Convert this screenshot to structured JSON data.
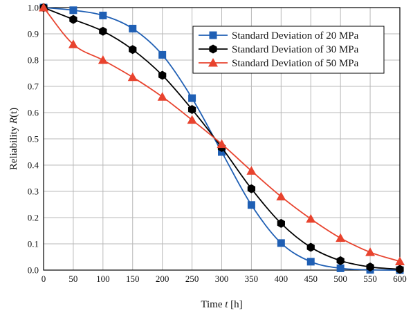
{
  "chart_data": {
    "type": "line",
    "title": "",
    "xlabel": "Time t [h]",
    "ylabel": "Reliability R(t)",
    "xlabel_parts": {
      "prefix": "Time ",
      "var": "t",
      "suffix": " [h]"
    },
    "ylabel_parts": {
      "prefix": "Reliability ",
      "var": "R",
      "suffix": "(t)"
    },
    "xlim": [
      0,
      600
    ],
    "ylim": [
      0,
      1.0
    ],
    "xticks": [
      0,
      50,
      100,
      150,
      200,
      250,
      300,
      350,
      400,
      450,
      500,
      550,
      600
    ],
    "yticks": [
      "0.0",
      "0.1",
      "0.2",
      "0.3",
      "0.4",
      "0.5",
      "0.6",
      "0.7",
      "0.8",
      "0.9",
      "1.0"
    ],
    "grid": true,
    "legend_position": "top-right",
    "x": [
      0,
      50,
      100,
      150,
      200,
      250,
      300,
      350,
      400,
      450,
      500,
      550,
      600
    ],
    "series": [
      {
        "name": "Standard Deviation of 20 MPa",
        "color": "#1f5fb4",
        "marker": "square",
        "values": [
          1.0,
          0.99,
          0.97,
          0.92,
          0.82,
          0.655,
          0.45,
          0.248,
          0.103,
          0.032,
          0.007,
          0.001,
          0.0
        ]
      },
      {
        "name": "Standard Deviation of 30 MPa",
        "color": "#000000",
        "marker": "hexagon",
        "values": [
          1.0,
          0.955,
          0.91,
          0.84,
          0.742,
          0.612,
          0.467,
          0.31,
          0.178,
          0.087,
          0.036,
          0.012,
          0.003
        ]
      },
      {
        "name": "Standard Deviation of 50 MPa",
        "color": "#e8432e",
        "marker": "triangle",
        "values": [
          1.0,
          0.86,
          0.8,
          0.735,
          0.66,
          0.572,
          0.48,
          0.378,
          0.28,
          0.195,
          0.122,
          0.068,
          0.033
        ]
      }
    ]
  }
}
